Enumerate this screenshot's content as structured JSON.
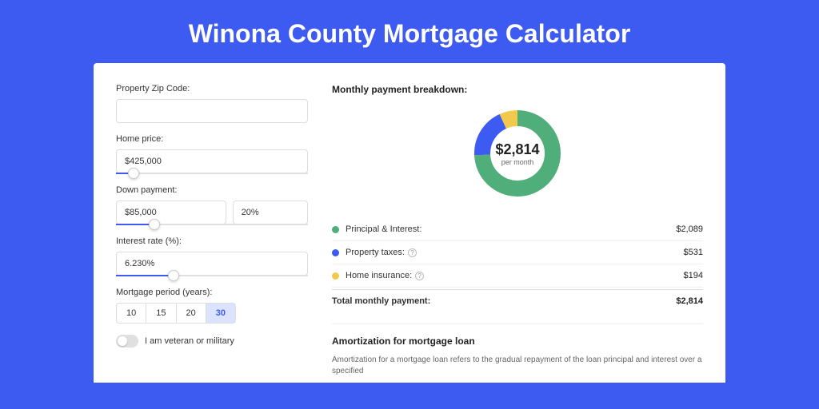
{
  "title": "Winona County Mortgage Calculator",
  "colors": {
    "brand": "#3d5af1",
    "principal": "#4fae79",
    "taxes": "#3d5af1",
    "insurance": "#f3c94b"
  },
  "form": {
    "zip": {
      "label": "Property Zip Code:",
      "value": ""
    },
    "price": {
      "label": "Home price:",
      "value": "$425,000",
      "slider_pct": 9
    },
    "down": {
      "label": "Down payment:",
      "amount": "$85,000",
      "pct": "20%",
      "slider_pct": 20
    },
    "rate": {
      "label": "Interest rate (%):",
      "value": "6.230%",
      "slider_pct": 30
    },
    "period": {
      "label": "Mortgage period (years):",
      "options": [
        "10",
        "15",
        "20",
        "30"
      ],
      "selected": "30"
    },
    "veteran": {
      "label": "I am veteran or military",
      "on": false
    }
  },
  "breakdown": {
    "title": "Monthly payment breakdown:",
    "total": "$2,814",
    "total_sub": "per month",
    "items": [
      {
        "label": "Principal & Interest:",
        "value": "$2,089",
        "color": "#4fae79",
        "deg": 267,
        "info": false
      },
      {
        "label": "Property taxes:",
        "value": "$531",
        "color": "#3d5af1",
        "deg": 68,
        "info": true
      },
      {
        "label": "Home insurance:",
        "value": "$194",
        "color": "#f3c94b",
        "deg": 25,
        "info": true
      }
    ],
    "total_row": {
      "label": "Total monthly payment:",
      "value": "$2,814"
    }
  },
  "amort": {
    "title": "Amortization for mortgage loan",
    "text": "Amortization for a mortgage loan refers to the gradual repayment of the loan principal and interest over a specified"
  }
}
